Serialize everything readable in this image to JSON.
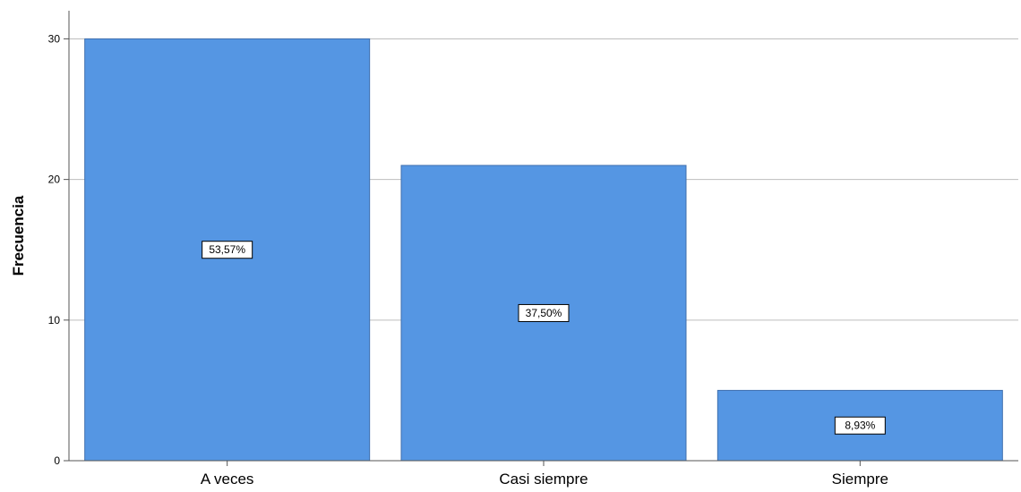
{
  "chart_data": {
    "type": "bar",
    "title": "",
    "xlabel": "",
    "ylabel": "Frecuencia",
    "categories": [
      "A veces",
      "Casi siempre",
      "Siempre"
    ],
    "values": [
      30,
      21,
      5
    ],
    "data_labels": [
      "53,57%",
      "37,50%",
      "8,93%"
    ],
    "ylim": [
      0,
      32
    ],
    "yticks": [
      0,
      10,
      20,
      30
    ],
    "ytick_labels": [
      "0",
      "10",
      "20",
      "30"
    ],
    "grid": true,
    "legend": "none",
    "bar_color": "#5596e3",
    "bar_edge_color": "#3f6fae",
    "grid_color": "#bdbdbd",
    "axis_color": "#555555"
  }
}
